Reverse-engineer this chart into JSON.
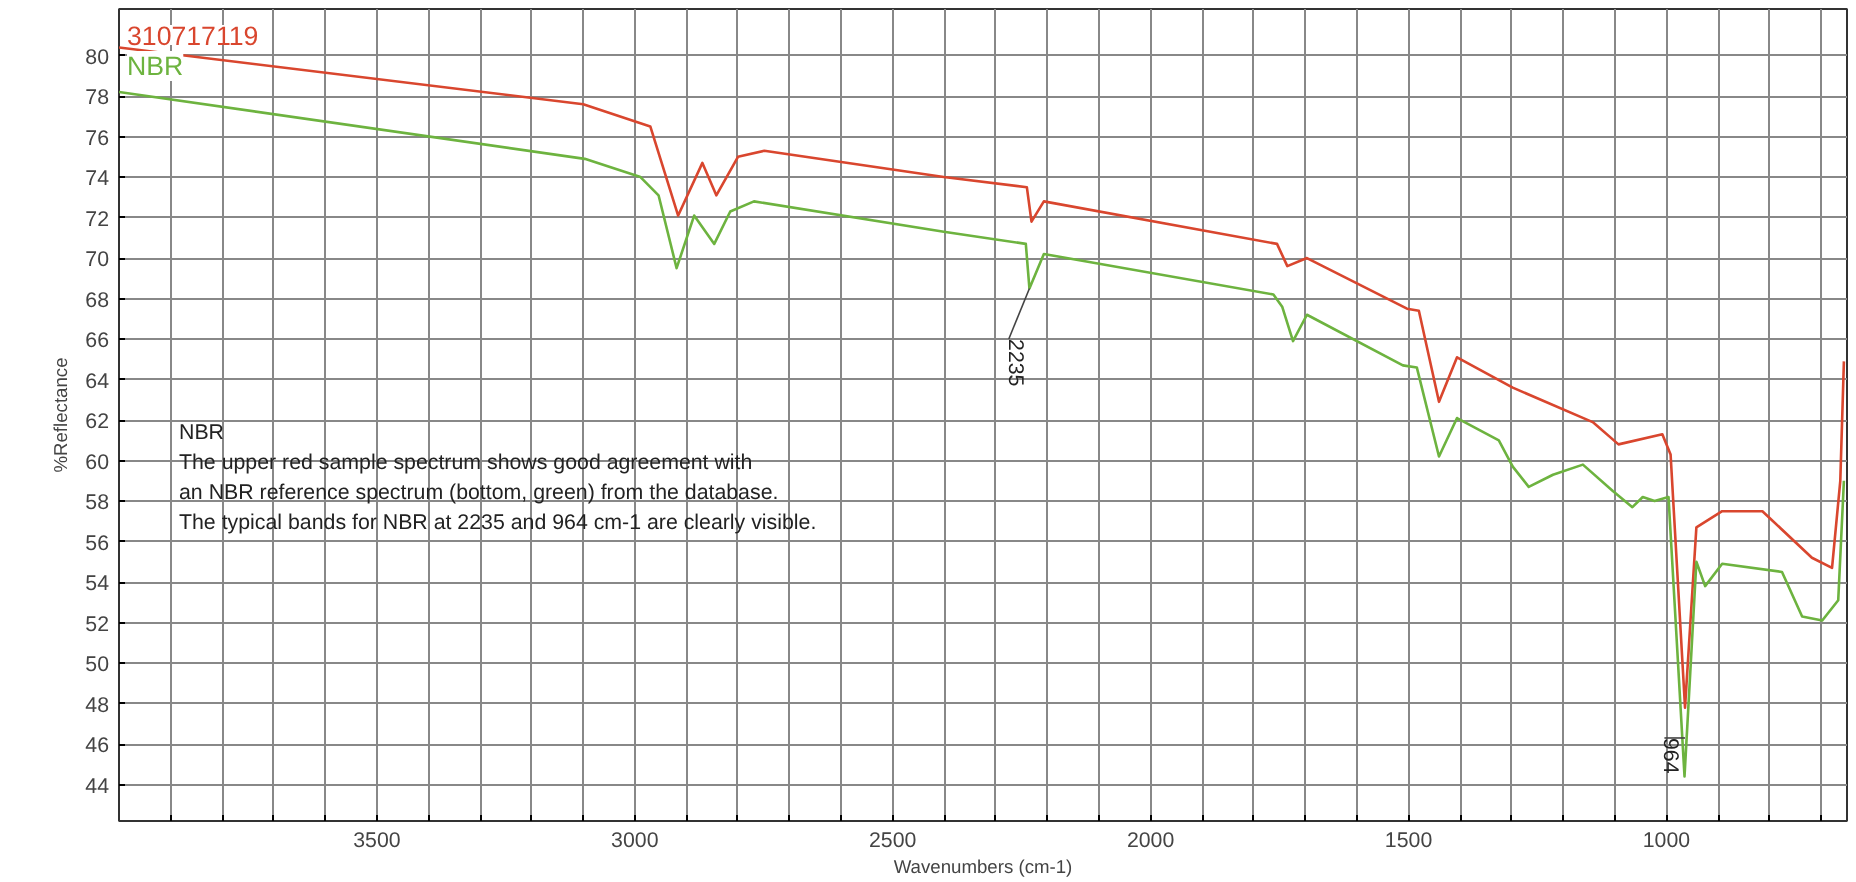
{
  "chart_data": {
    "type": "line",
    "xlabel": "Wavenumbers (cm-1)",
    "ylabel": "%Reflectance",
    "xlim": [
      4000,
      650
    ],
    "ylim": [
      42.2,
      82.3
    ],
    "xticks": [
      {
        "value": 3900,
        "label": null
      },
      {
        "value": 3800,
        "label": null
      },
      {
        "value": 3700,
        "label": null
      },
      {
        "value": 3600,
        "label": null
      },
      3500,
      {
        "value": 3400,
        "label": null
      },
      {
        "value": 3300,
        "label": null
      },
      {
        "value": 3200,
        "label": null
      },
      {
        "value": 3100,
        "label": null
      },
      3000,
      {
        "value": 2900,
        "label": null
      },
      {
        "value": 2800,
        "label": null
      },
      {
        "value": 2700,
        "label": null
      },
      {
        "value": 2600,
        "label": null
      },
      2500,
      {
        "value": 2400,
        "label": null
      },
      {
        "value": 2300,
        "label": null
      },
      {
        "value": 2200,
        "label": null
      },
      {
        "value": 2100,
        "label": null
      },
      2000,
      {
        "value": 1900,
        "label": null
      },
      {
        "value": 1800,
        "label": null
      },
      {
        "value": 1700,
        "label": null
      },
      {
        "value": 1600,
        "label": null
      },
      1500,
      {
        "value": 1400,
        "label": null
      },
      {
        "value": 1300,
        "label": null
      },
      {
        "value": 1200,
        "label": null
      },
      {
        "value": 1100,
        "label": null
      },
      1000,
      {
        "value": 900,
        "label": null
      },
      {
        "value": 800,
        "label": null
      },
      {
        "value": 700,
        "label": null
      }
    ],
    "yticks": [
      44,
      46,
      48,
      50,
      52,
      54,
      56,
      58,
      60,
      62,
      64,
      66,
      68,
      70,
      72,
      74,
      76,
      78,
      80
    ],
    "grid": true,
    "legend": "top left",
    "line_style": "solid",
    "marker": "none",
    "series": [
      {
        "name": "310717119",
        "color": "#d9462e",
        "x": [
          4000,
          3100,
          2970,
          2916,
          2869,
          2842,
          2800,
          2749,
          2401,
          2240,
          2231,
          2207,
          1755,
          1735,
          1697,
          1503,
          1480,
          1441,
          1406,
          1298,
          1143,
          1093,
          1008,
          992,
          964,
          942,
          892,
          814,
          718,
          679,
          663,
          656
        ],
        "values": [
          80.4,
          77.6,
          76.5,
          72.1,
          74.7,
          73.1,
          75.0,
          75.3,
          74.0,
          73.5,
          71.8,
          72.8,
          70.7,
          69.6,
          70.0,
          67.5,
          67.4,
          62.9,
          65.1,
          63.6,
          61.9,
          60.8,
          61.3,
          60.3,
          47.8,
          56.7,
          57.5,
          57.5,
          55.2,
          54.7,
          59.0,
          64.9
        ]
      },
      {
        "name": "NBR",
        "color": "#6db33f",
        "x": [
          4000,
          3097,
          2989,
          2954,
          2919,
          2885,
          2846,
          2815,
          2769,
          2401,
          2242,
          2235,
          2207,
          1762,
          1745,
          1724,
          1697,
          1511,
          1484,
          1441,
          1406,
          1325,
          1298,
          1267,
          1220,
          1162,
          1104,
          1066,
          1046,
          1023,
          996,
          965,
          942,
          925,
          892,
          776,
          737,
          698,
          667,
          656
        ],
        "values": [
          78.2,
          74.9,
          74.0,
          73.1,
          69.5,
          72.1,
          70.7,
          72.3,
          72.8,
          71.3,
          70.7,
          68.5,
          70.2,
          68.2,
          67.6,
          65.9,
          67.2,
          64.7,
          64.6,
          60.2,
          62.1,
          61.0,
          59.7,
          58.7,
          59.3,
          59.8,
          58.5,
          57.7,
          58.2,
          58.0,
          58.2,
          44.4,
          55.0,
          53.8,
          54.9,
          54.5,
          52.3,
          52.1,
          53.1,
          59.0
        ]
      }
    ],
    "annotations": [
      {
        "text": "2235",
        "x": 2235,
        "y": 68.5
      },
      {
        "text": "964",
        "x": 964,
        "y": 46.3
      },
      "NBR\nThe upper red sample spectrum shows good agreement with\nan NBR reference spectrum (bottom, green) from the database.\nThe typical bands for NBR at 2235 and 964 cm-1 are clearly visible."
    ]
  }
}
